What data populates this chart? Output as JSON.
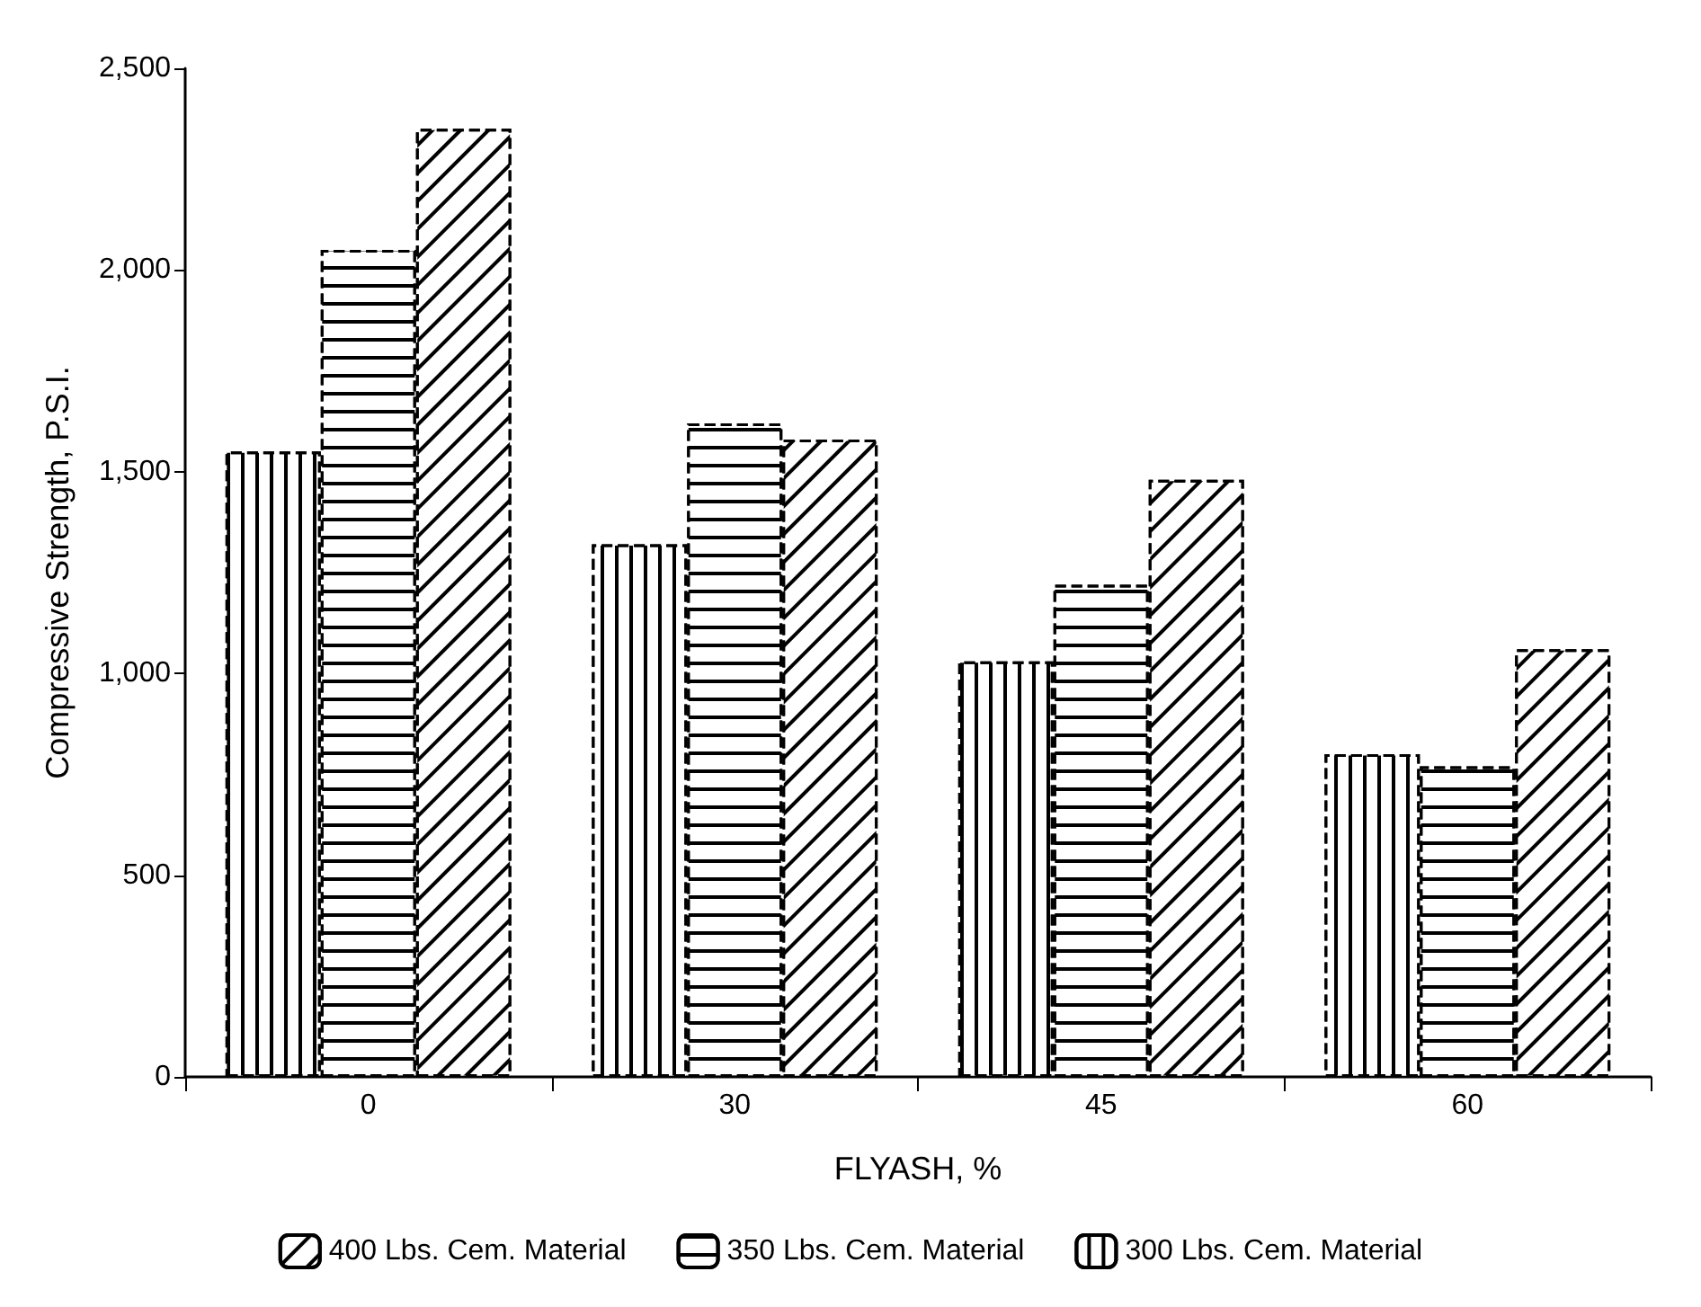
{
  "chart_data": {
    "type": "bar",
    "xlabel": "FLYASH, %",
    "ylabel": "Compressive Strength, P.S.I.",
    "categories": [
      "0",
      "30",
      "45",
      "60"
    ],
    "series": [
      {
        "name": "300 Lbs. Cem. Material",
        "color": "#000000",
        "values": [
          1550,
          1320,
          1030,
          800
        ]
      },
      {
        "name": "350 Lbs. Cem. Material",
        "color": "#000000",
        "values": [
          2050,
          1620,
          1220,
          770
        ]
      },
      {
        "name": "400 Lbs. Cem. Material",
        "color": "#000000",
        "values": [
          2350,
          1580,
          1480,
          1060
        ]
      }
    ],
    "ylim": [
      0,
      2500
    ],
    "yticks": [
      {
        "value": 0,
        "label": "0"
      },
      {
        "value": 500,
        "label": "500"
      },
      {
        "value": 1000,
        "label": "1,000"
      },
      {
        "value": 1500,
        "label": "1,500"
      },
      {
        "value": 2000,
        "label": "2,000"
      },
      {
        "value": 2500,
        "label": "2,500"
      }
    ],
    "grid": false,
    "legend": "bottom"
  }
}
